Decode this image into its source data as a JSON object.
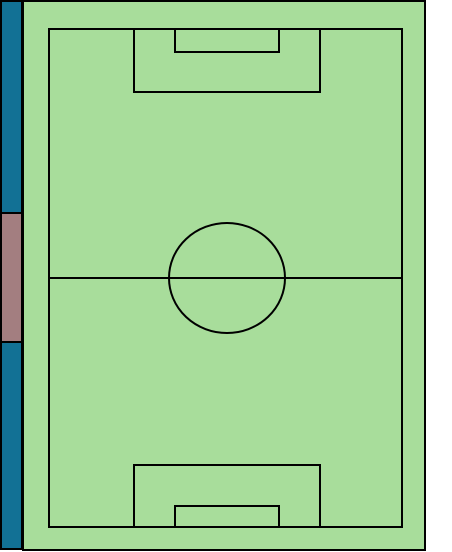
{
  "colors": {
    "pitch_fill": "#a8dd9b",
    "line": "#000000",
    "strip_blue": "#127195",
    "strip_mauve": "#a37e80"
  },
  "strip": {
    "segments": [
      "top-blue",
      "middle-mauve",
      "bottom-blue"
    ]
  },
  "pitch": {
    "markings": [
      "outer-boundary",
      "field-boundary",
      "halfway-line",
      "center-circle",
      "top-penalty-area",
      "top-goal-area",
      "bottom-penalty-area",
      "bottom-goal-area"
    ]
  }
}
